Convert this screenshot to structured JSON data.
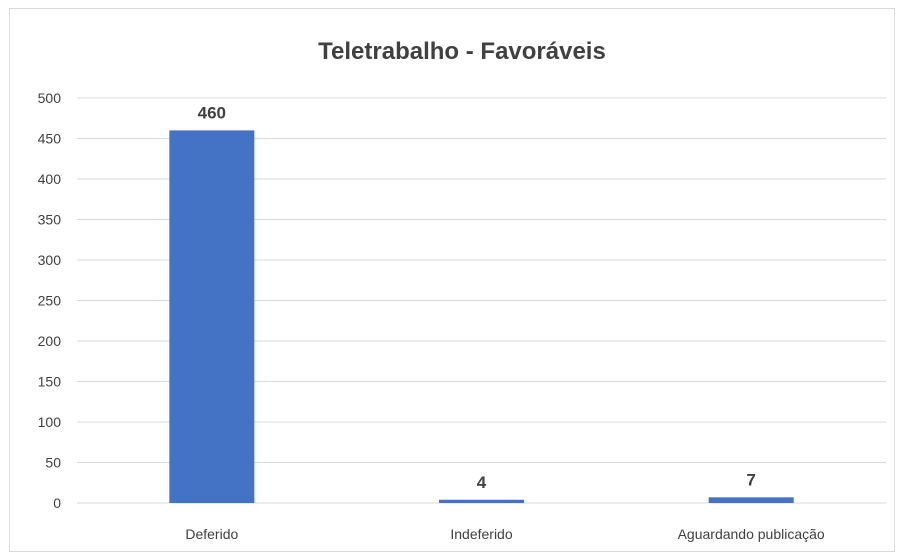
{
  "chart_data": {
    "type": "bar",
    "title": "Teletrabalho - Favoráveis",
    "xlabel": "",
    "ylabel": "",
    "categories": [
      "Deferido",
      "Indeferido",
      "Aguardando publicação"
    ],
    "values": [
      460,
      4,
      7
    ],
    "data_labels": [
      "460",
      "4",
      "7"
    ],
    "ylim": [
      0,
      500
    ],
    "yticks": [
      0,
      50,
      100,
      150,
      200,
      250,
      300,
      350,
      400,
      450,
      500
    ],
    "ytick_labels": [
      "0",
      "50",
      "100",
      "150",
      "200",
      "250",
      "300",
      "350",
      "400",
      "450",
      "500"
    ],
    "grid": true,
    "legend": "none",
    "bar_color": "#4472C4"
  }
}
